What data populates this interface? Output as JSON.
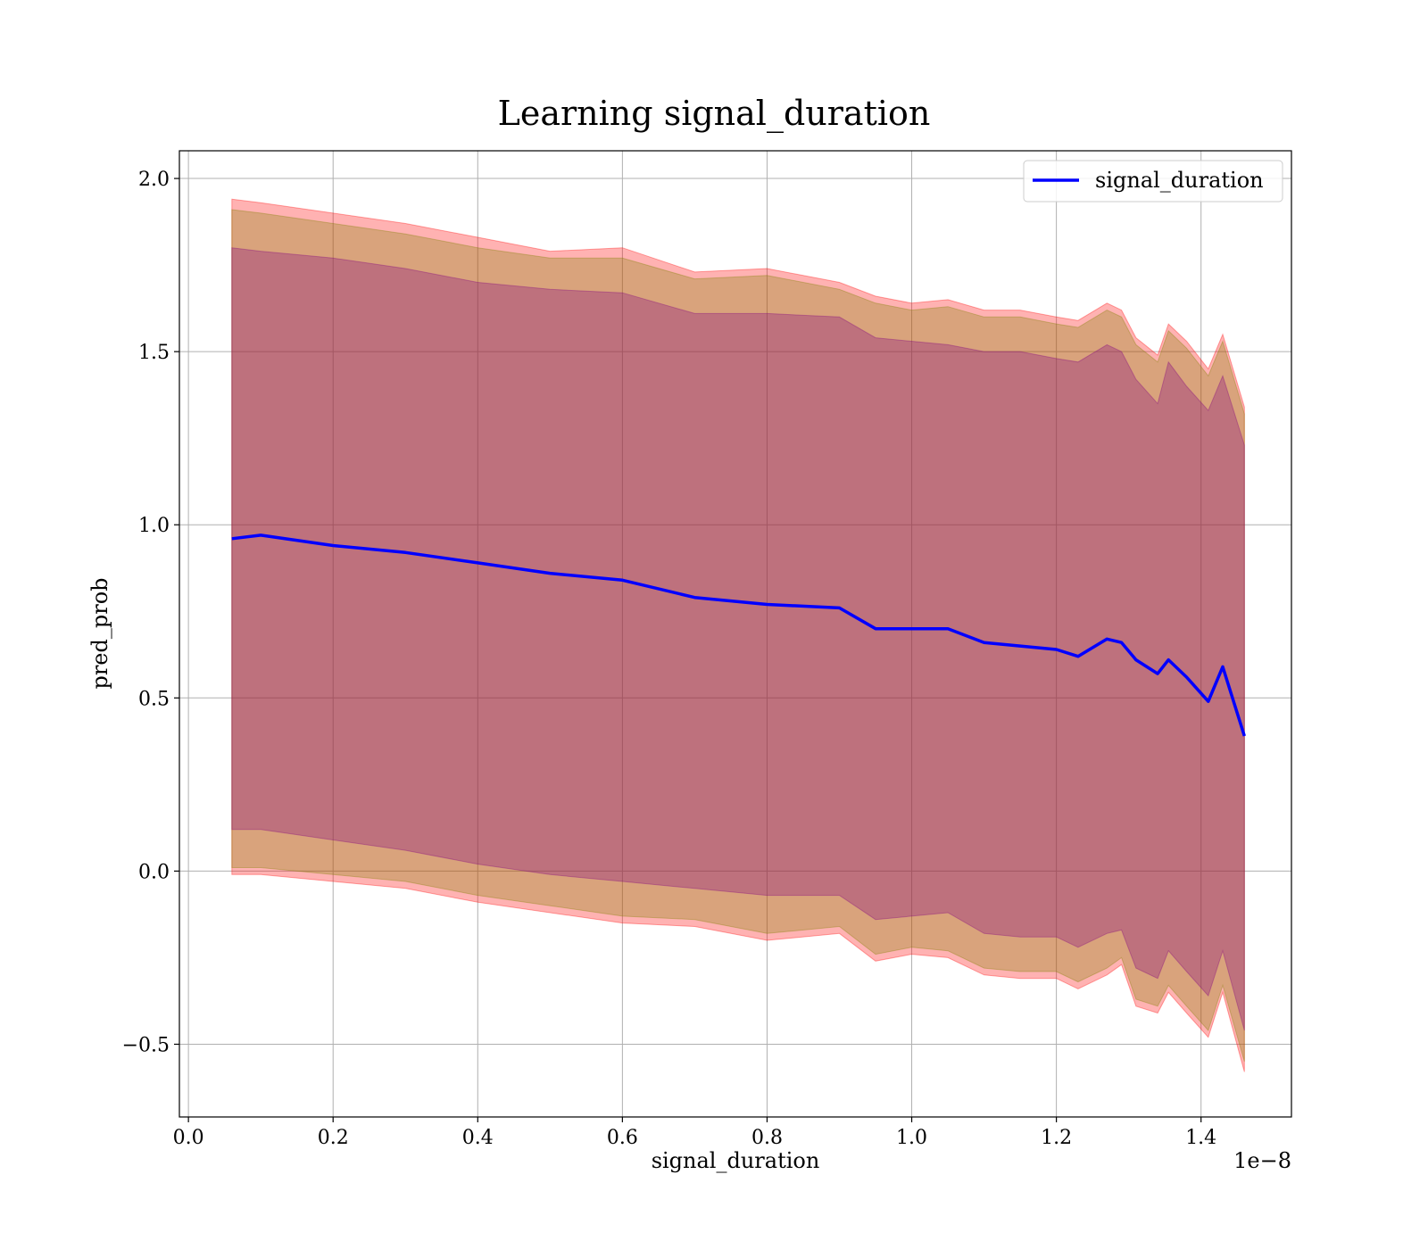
{
  "chart_data": {
    "type": "line",
    "title": "Learning signal_duration",
    "xlabel": "signal_duration",
    "ylabel": "pred_prob",
    "x_offset_label": "1e−8",
    "xlim": [
      -0.0125,
      1.525
    ],
    "ylim": [
      -0.71,
      2.08
    ],
    "xticks": [
      0.0,
      0.2,
      0.4,
      0.6,
      0.8,
      1.0,
      1.2,
      1.4
    ],
    "xtick_labels": [
      "0.0",
      "0.2",
      "0.4",
      "0.6",
      "0.8",
      "1.0",
      "1.2",
      "1.4"
    ],
    "yticks": [
      -0.5,
      0.0,
      0.5,
      1.0,
      1.5,
      2.0
    ],
    "ytick_labels": [
      "−0.5",
      "0.0",
      "0.5",
      "1.0",
      "1.5",
      "2.0"
    ],
    "grid": true,
    "legend_position": "top-right",
    "colors": {
      "line": "#0000ff",
      "outer_band": "#ff0000",
      "middle_band": "#808000",
      "inner_band": "#800080"
    },
    "x": [
      0.06,
      0.1,
      0.2,
      0.3,
      0.4,
      0.5,
      0.6,
      0.7,
      0.8,
      0.9,
      0.95,
      1.0,
      1.05,
      1.1,
      1.15,
      1.2,
      1.23,
      1.27,
      1.29,
      1.31,
      1.34,
      1.355,
      1.38,
      1.41,
      1.43,
      1.46
    ],
    "series": [
      {
        "name": "signal_duration",
        "values": [
          0.96,
          0.97,
          0.94,
          0.92,
          0.89,
          0.86,
          0.84,
          0.79,
          0.77,
          0.76,
          0.7,
          0.7,
          0.7,
          0.66,
          0.65,
          0.64,
          0.62,
          0.67,
          0.66,
          0.61,
          0.57,
          0.61,
          0.56,
          0.49,
          0.59,
          0.39
        ]
      }
    ],
    "bands": [
      {
        "level": "outer",
        "upper": [
          1.94,
          1.93,
          1.9,
          1.87,
          1.83,
          1.79,
          1.8,
          1.73,
          1.74,
          1.7,
          1.66,
          1.64,
          1.65,
          1.62,
          1.62,
          1.6,
          1.59,
          1.64,
          1.62,
          1.54,
          1.49,
          1.58,
          1.53,
          1.45,
          1.55,
          1.34
        ],
        "lower": [
          -0.01,
          -0.01,
          -0.03,
          -0.05,
          -0.09,
          -0.12,
          -0.15,
          -0.16,
          -0.2,
          -0.18,
          -0.26,
          -0.24,
          -0.25,
          -0.3,
          -0.31,
          -0.31,
          -0.34,
          -0.3,
          -0.27,
          -0.39,
          -0.41,
          -0.35,
          -0.41,
          -0.48,
          -0.35,
          -0.58
        ]
      },
      {
        "level": "middle",
        "upper": [
          1.91,
          1.9,
          1.87,
          1.84,
          1.8,
          1.77,
          1.77,
          1.71,
          1.72,
          1.68,
          1.64,
          1.62,
          1.63,
          1.6,
          1.6,
          1.58,
          1.57,
          1.62,
          1.6,
          1.52,
          1.47,
          1.56,
          1.51,
          1.43,
          1.53,
          1.32
        ],
        "lower": [
          0.01,
          0.01,
          -0.01,
          -0.03,
          -0.07,
          -0.1,
          -0.13,
          -0.14,
          -0.18,
          -0.16,
          -0.24,
          -0.22,
          -0.23,
          -0.28,
          -0.29,
          -0.29,
          -0.32,
          -0.28,
          -0.25,
          -0.37,
          -0.39,
          -0.33,
          -0.39,
          -0.46,
          -0.33,
          -0.55
        ]
      },
      {
        "level": "inner",
        "upper": [
          1.8,
          1.79,
          1.77,
          1.74,
          1.7,
          1.68,
          1.67,
          1.61,
          1.61,
          1.6,
          1.54,
          1.53,
          1.52,
          1.5,
          1.5,
          1.48,
          1.47,
          1.52,
          1.5,
          1.42,
          1.35,
          1.47,
          1.4,
          1.33,
          1.43,
          1.23
        ],
        "lower": [
          0.12,
          0.12,
          0.09,
          0.06,
          0.02,
          -0.01,
          -0.03,
          -0.05,
          -0.07,
          -0.07,
          -0.14,
          -0.13,
          -0.12,
          -0.18,
          -0.19,
          -0.19,
          -0.22,
          -0.18,
          -0.17,
          -0.28,
          -0.31,
          -0.23,
          -0.29,
          -0.36,
          -0.23,
          -0.46
        ]
      }
    ]
  }
}
